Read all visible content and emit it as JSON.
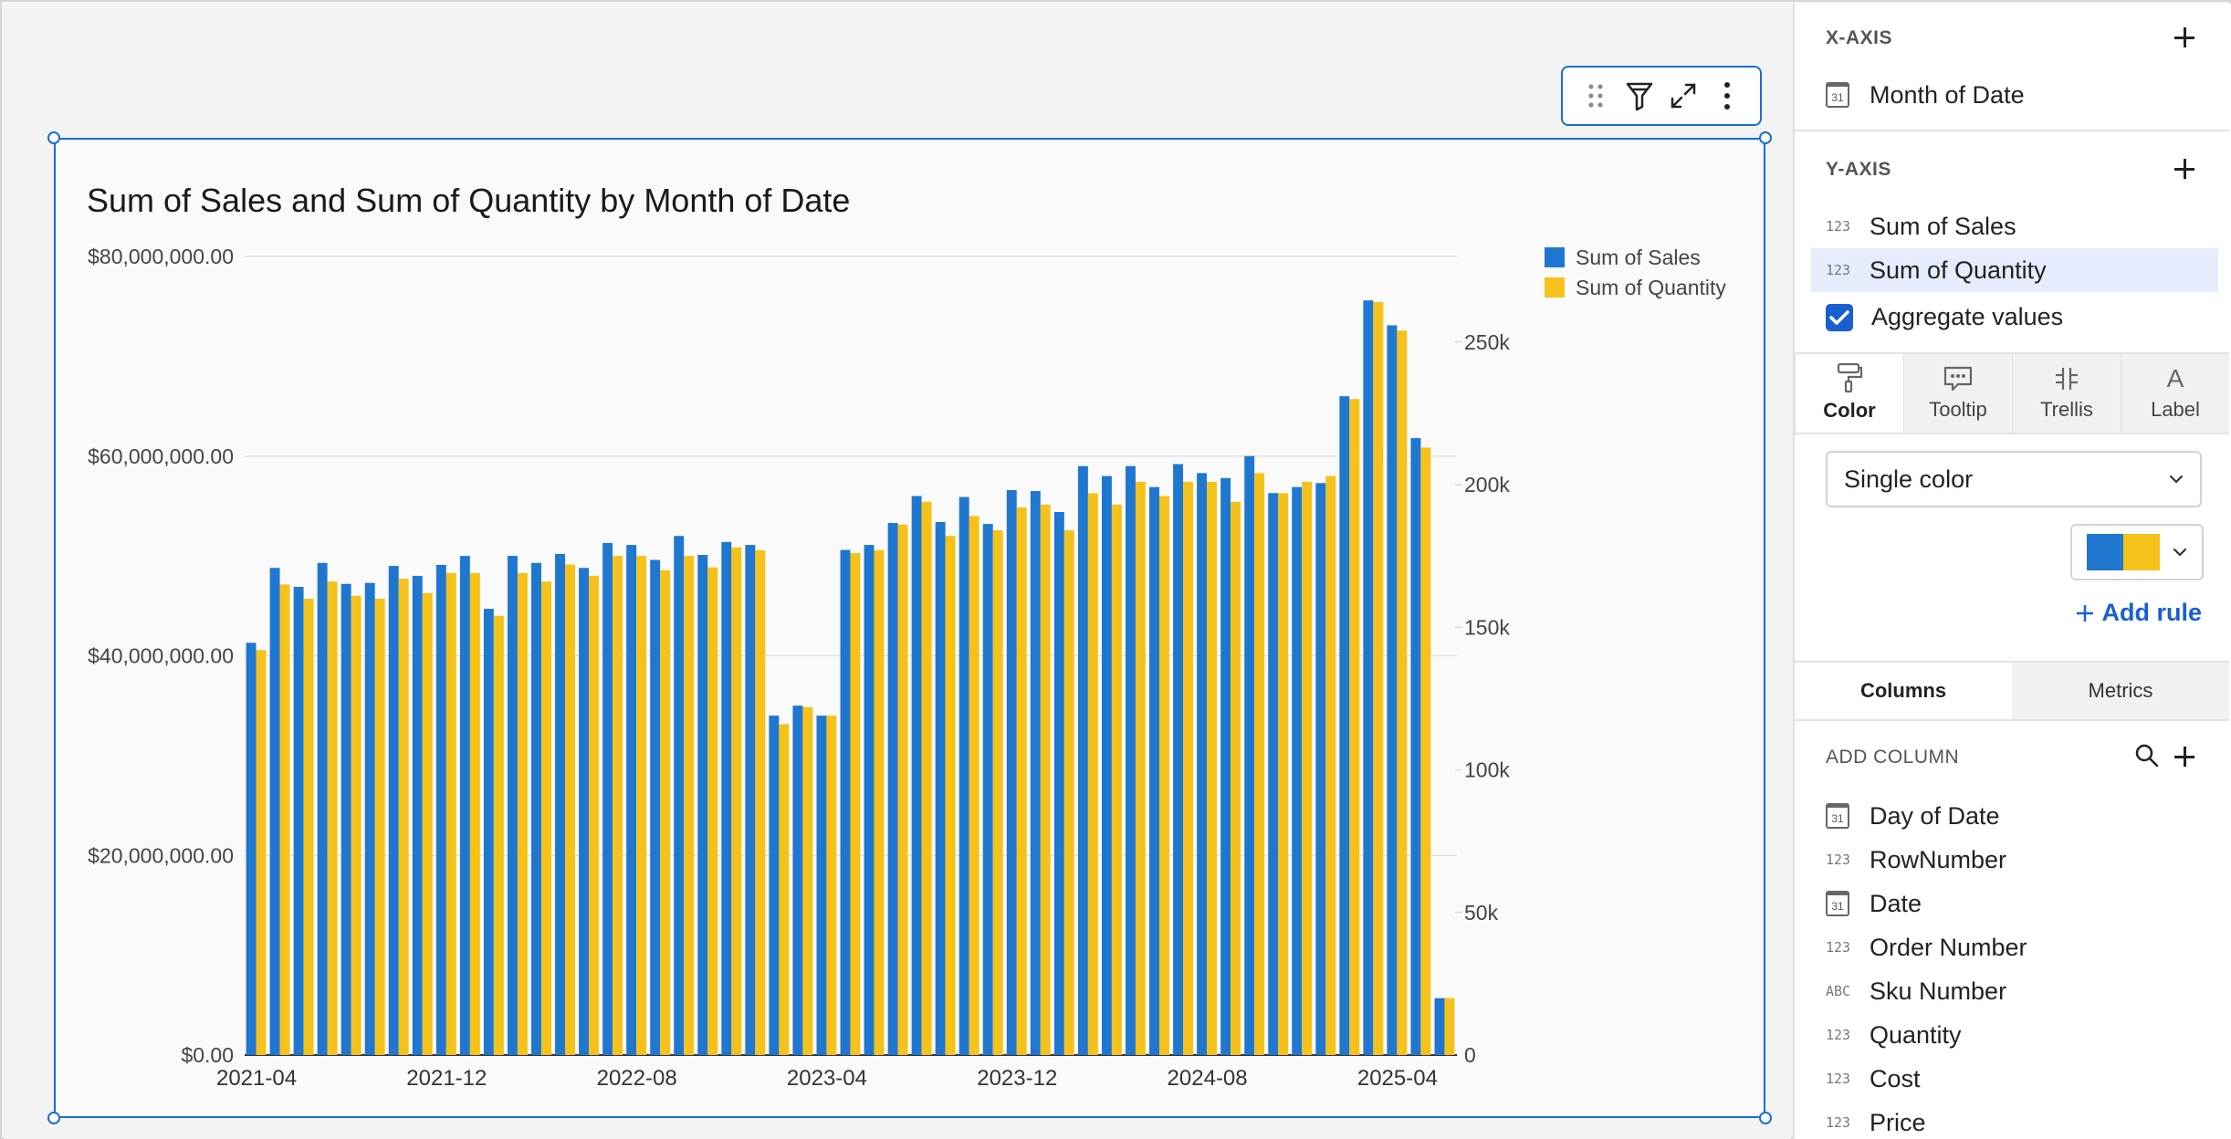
{
  "toolbar": {
    "icons": [
      "drag-handle-icon",
      "filter-icon",
      "expand-icon",
      "more-options-icon"
    ]
  },
  "chart_data": {
    "type": "bar",
    "title": "Sum of Sales and Sum of Quantity by Month of Date",
    "xlabel": "",
    "ylabel": "",
    "ylim": [
      0,
      80000000
    ],
    "y2lim": [
      0,
      280000
    ],
    "yticks": [
      "$0.00",
      "$20,000,000.00",
      "$40,000,000.00",
      "$60,000,000.00",
      "$80,000,000.00"
    ],
    "y2ticks": [
      "0",
      "50k",
      "100k",
      "150k",
      "200k",
      "250k"
    ],
    "xticks": [
      "2021-04",
      "2021-12",
      "2022-08",
      "2023-04",
      "2023-12",
      "2024-08",
      "2025-04"
    ],
    "grid": true,
    "legend_position": "top-right",
    "x_start": "2021-04",
    "series": [
      {
        "name": "Sum of Sales",
        "axis": "left",
        "color": "#1f77d0",
        "values": [
          41300000,
          48800000,
          46900000,
          49300000,
          47200000,
          47300000,
          49000000,
          48000000,
          49100000,
          50000000,
          44700000,
          50000000,
          49300000,
          50200000,
          48800000,
          51300000,
          51100000,
          49600000,
          52000000,
          50100000,
          51400000,
          51100000,
          34000000,
          35000000,
          34000000,
          50600000,
          51100000,
          53300000,
          56000000,
          53400000,
          55900000,
          53200000,
          56600000,
          56500000,
          54400000,
          59000000,
          58000000,
          59000000,
          56900000,
          59200000,
          58300000,
          57800000,
          60000000,
          56300000,
          56900000,
          57300000,
          66000000,
          75600000,
          73100000,
          61800000,
          5700000
        ]
      },
      {
        "name": "Sum of Quantity",
        "axis": "right",
        "color": "#f5c21b",
        "values": [
          142000,
          165000,
          160000,
          166000,
          161000,
          160000,
          167000,
          162000,
          169000,
          169000,
          154000,
          169000,
          166000,
          172000,
          168000,
          175000,
          175000,
          170000,
          175000,
          171000,
          178000,
          177000,
          116000,
          122000,
          119000,
          176000,
          177000,
          186000,
          194000,
          182000,
          189000,
          184000,
          192000,
          193000,
          184000,
          197000,
          193000,
          201000,
          196000,
          201000,
          201000,
          194000,
          204000,
          197000,
          201000,
          203000,
          230000,
          264000,
          254000,
          213000,
          20000
        ]
      }
    ]
  },
  "panel": {
    "x_axis": {
      "heading": "X-AXIS",
      "fields": [
        {
          "type": "date",
          "icon_text": "31",
          "label": "Month of Date"
        }
      ]
    },
    "y_axis": {
      "heading": "Y-AXIS",
      "fields": [
        {
          "type": "number",
          "icon_text": "123",
          "label": "Sum of Sales"
        },
        {
          "type": "number",
          "icon_text": "123",
          "label": "Sum of Quantity"
        }
      ]
    },
    "aggregate": {
      "label": "Aggregate values",
      "checked": true
    },
    "tabs": [
      {
        "label": "Color",
        "icon": "paint-roller-icon"
      },
      {
        "label": "Tooltip",
        "icon": "tooltip-icon"
      },
      {
        "label": "Trellis",
        "icon": "trellis-icon"
      },
      {
        "label": "Label",
        "icon": "label-icon",
        "glyph": "A"
      }
    ],
    "color_select": {
      "value": "Single color"
    },
    "swatch_colors": [
      "#1f77d0",
      "#f5c21b"
    ],
    "add_rule": "Add rule",
    "bottom_tabs": [
      "Columns",
      "Metrics"
    ],
    "add_column": {
      "heading": "ADD COLUMN",
      "columns": [
        {
          "type": "date",
          "icon_text": "31",
          "label": "Day of Date"
        },
        {
          "type": "number",
          "icon_text": "123",
          "label": "RowNumber"
        },
        {
          "type": "date",
          "icon_text": "31",
          "label": "Date"
        },
        {
          "type": "number",
          "icon_text": "123",
          "label": "Order Number"
        },
        {
          "type": "text",
          "icon_text": "ABC",
          "label": "Sku Number"
        },
        {
          "type": "number",
          "icon_text": "123",
          "label": "Quantity"
        },
        {
          "type": "number",
          "icon_text": "123",
          "label": "Cost"
        },
        {
          "type": "number",
          "icon_text": "123",
          "label": "Price"
        }
      ]
    }
  }
}
